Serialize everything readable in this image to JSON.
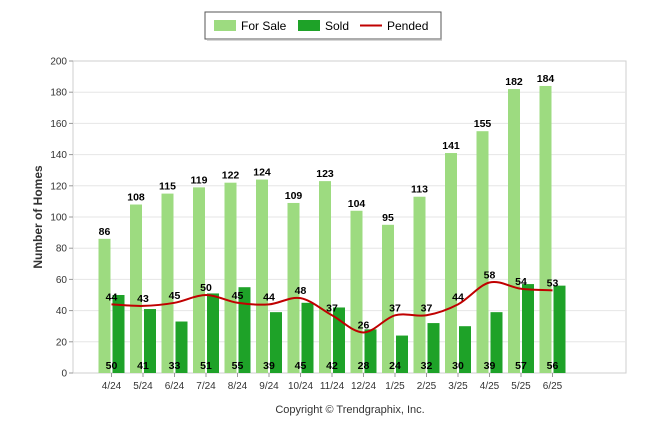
{
  "chart_data": {
    "type": "bar",
    "categories": [
      "4/24",
      "5/24",
      "6/24",
      "7/24",
      "8/24",
      "9/24",
      "10/24",
      "11/24",
      "12/24",
      "1/25",
      "2/25",
      "3/25",
      "4/25",
      "5/25",
      "6/25"
    ],
    "series": [
      {
        "name": "For Sale",
        "type": "bar",
        "color": "#9ddb80",
        "values": [
          86,
          108,
          115,
          119,
          122,
          124,
          109,
          123,
          104,
          95,
          113,
          141,
          155,
          182,
          184
        ]
      },
      {
        "name": "Sold",
        "type": "bar",
        "color": "#1ea228",
        "values": [
          50,
          41,
          33,
          51,
          55,
          39,
          45,
          42,
          28,
          24,
          32,
          30,
          39,
          57,
          56
        ]
      },
      {
        "name": "Pended",
        "type": "line",
        "color": "#c00000",
        "values": [
          44,
          43,
          45,
          50,
          45,
          44,
          48,
          37,
          26,
          37,
          37,
          44,
          58,
          54,
          53
        ]
      }
    ],
    "title": "",
    "xlabel": "",
    "ylabel": "Number of Homes",
    "ylim": [
      0,
      200
    ],
    "yticks": [
      0,
      20,
      40,
      60,
      80,
      100,
      120,
      140,
      160,
      180,
      200
    ],
    "grid": true,
    "legend": "top-center",
    "footer": "Copyright © Trendgraphix, Inc."
  }
}
